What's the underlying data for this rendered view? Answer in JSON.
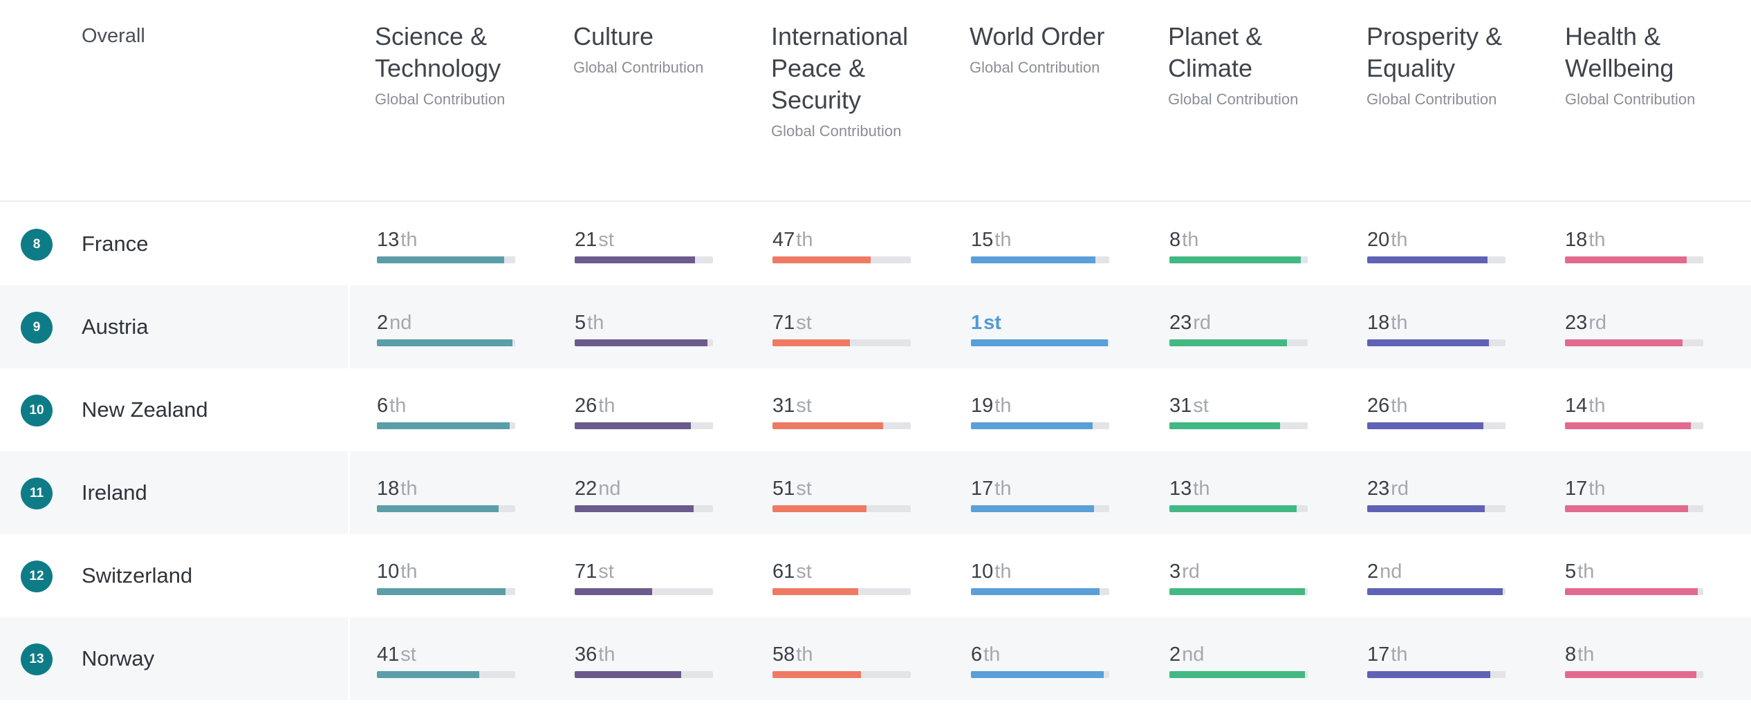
{
  "header": {
    "overall_label": "Overall",
    "columns": [
      {
        "title_lines": [
          "Science &",
          "Technology"
        ],
        "subtitle": "Global Contribution",
        "color": "#5b9ea8"
      },
      {
        "title_lines": [
          "Culture"
        ],
        "subtitle": "Global Contribution",
        "color": "#6b5b8c"
      },
      {
        "title_lines": [
          "International",
          "Peace &",
          "Security"
        ],
        "subtitle": "Global Contribution",
        "color": "#ef7a63"
      },
      {
        "title_lines": [
          "World Order"
        ],
        "subtitle": "Global Contribution",
        "color": "#5a9fd8"
      },
      {
        "title_lines": [
          "Planet &",
          "Climate"
        ],
        "subtitle": "Global Contribution",
        "color": "#42b883"
      },
      {
        "title_lines": [
          "Prosperity &",
          "Equality"
        ],
        "subtitle": "Global Contribution",
        "color": "#5f62b5"
      },
      {
        "title_lines": [
          "Health &",
          "Wellbeing"
        ],
        "subtitle": "Global Contribution",
        "color": "#e36a8f"
      }
    ]
  },
  "rows": [
    {
      "overall_rank": "8",
      "country": "France",
      "cells": [
        {
          "num": "13",
          "suf": "th",
          "fill": 0.92
        },
        {
          "num": "21",
          "suf": "st",
          "fill": 0.87
        },
        {
          "num": "47",
          "suf": "th",
          "fill": 0.71
        },
        {
          "num": "15",
          "suf": "th",
          "fill": 0.9
        },
        {
          "num": "8",
          "suf": "th",
          "fill": 0.95
        },
        {
          "num": "20",
          "suf": "th",
          "fill": 0.87
        },
        {
          "num": "18",
          "suf": "th",
          "fill": 0.88
        }
      ]
    },
    {
      "overall_rank": "9",
      "country": "Austria",
      "cells": [
        {
          "num": "2",
          "suf": "nd",
          "fill": 0.98
        },
        {
          "num": "5",
          "suf": "th",
          "fill": 0.96
        },
        {
          "num": "71",
          "suf": "st",
          "fill": 0.56
        },
        {
          "num": "1",
          "suf": "st",
          "fill": 0.99,
          "best": true
        },
        {
          "num": "23",
          "suf": "rd",
          "fill": 0.85
        },
        {
          "num": "18",
          "suf": "th",
          "fill": 0.88
        },
        {
          "num": "23",
          "suf": "rd",
          "fill": 0.85
        }
      ]
    },
    {
      "overall_rank": "10",
      "country": "New Zealand",
      "cells": [
        {
          "num": "6",
          "suf": "th",
          "fill": 0.96
        },
        {
          "num": "26",
          "suf": "th",
          "fill": 0.84
        },
        {
          "num": "31",
          "suf": "st",
          "fill": 0.8
        },
        {
          "num": "19",
          "suf": "th",
          "fill": 0.88
        },
        {
          "num": "31",
          "suf": "st",
          "fill": 0.8
        },
        {
          "num": "26",
          "suf": "th",
          "fill": 0.84
        },
        {
          "num": "14",
          "suf": "th",
          "fill": 0.91
        }
      ]
    },
    {
      "overall_rank": "11",
      "country": "Ireland",
      "cells": [
        {
          "num": "18",
          "suf": "th",
          "fill": 0.88
        },
        {
          "num": "22",
          "suf": "nd",
          "fill": 0.86
        },
        {
          "num": "51",
          "suf": "st",
          "fill": 0.68
        },
        {
          "num": "17",
          "suf": "th",
          "fill": 0.89
        },
        {
          "num": "13",
          "suf": "th",
          "fill": 0.92
        },
        {
          "num": "23",
          "suf": "rd",
          "fill": 0.85
        },
        {
          "num": "17",
          "suf": "th",
          "fill": 0.89
        }
      ]
    },
    {
      "overall_rank": "12",
      "country": "Switzerland",
      "cells": [
        {
          "num": "10",
          "suf": "th",
          "fill": 0.93
        },
        {
          "num": "71",
          "suf": "st",
          "fill": 0.56
        },
        {
          "num": "61",
          "suf": "st",
          "fill": 0.62
        },
        {
          "num": "10",
          "suf": "th",
          "fill": 0.93
        },
        {
          "num": "3",
          "suf": "rd",
          "fill": 0.98
        },
        {
          "num": "2",
          "suf": "nd",
          "fill": 0.98
        },
        {
          "num": "5",
          "suf": "th",
          "fill": 0.96
        }
      ]
    },
    {
      "overall_rank": "13",
      "country": "Norway",
      "cells": [
        {
          "num": "41",
          "suf": "st",
          "fill": 0.74
        },
        {
          "num": "36",
          "suf": "th",
          "fill": 0.77
        },
        {
          "num": "58",
          "suf": "th",
          "fill": 0.64
        },
        {
          "num": "6",
          "suf": "th",
          "fill": 0.96
        },
        {
          "num": "2",
          "suf": "nd",
          "fill": 0.98
        },
        {
          "num": "17",
          "suf": "th",
          "fill": 0.89
        },
        {
          "num": "8",
          "suf": "th",
          "fill": 0.95
        }
      ]
    }
  ]
}
